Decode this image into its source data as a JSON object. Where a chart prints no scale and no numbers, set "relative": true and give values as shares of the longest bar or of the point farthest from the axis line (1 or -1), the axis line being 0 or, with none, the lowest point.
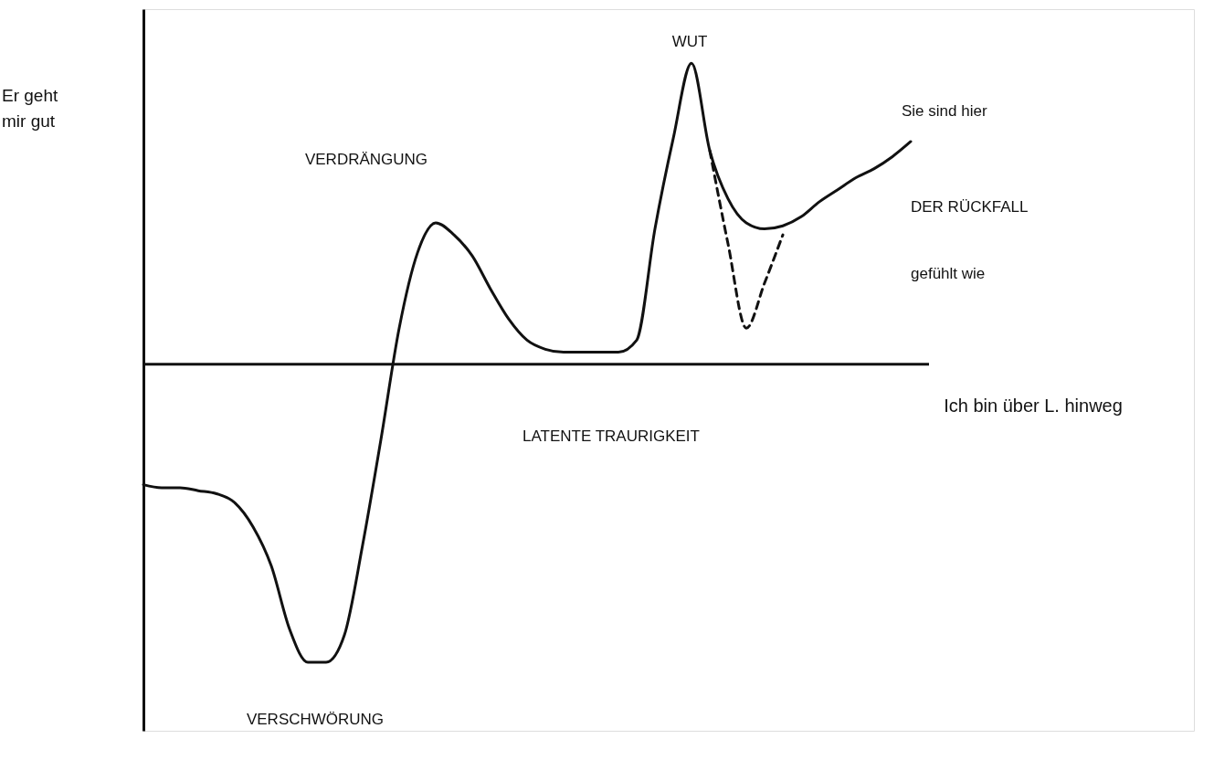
{
  "chart_data": {
    "type": "line",
    "relative": true,
    "xlabel": "Ich bin über L. hinweg",
    "ylabel": "Er geht mir gut",
    "categories": [
      null,
      null,
      null,
      null,
      null,
      null,
      null,
      null,
      null,
      null,
      null,
      null,
      null,
      null,
      null,
      null,
      null,
      null,
      null,
      null,
      null,
      null,
      null,
      null,
      null,
      null,
      null,
      null,
      null,
      null,
      null,
      null,
      null,
      null,
      null,
      null,
      null,
      null,
      null,
      null,
      null,
      null,
      null
    ],
    "series": [
      {
        "color": "#111111",
        "line_style": "solid",
        "values": [
          -0.4,
          -0.41,
          -0.41,
          -0.42,
          -0.43,
          -0.46,
          -0.54,
          -0.67,
          -0.88,
          -0.99,
          -0.99,
          -0.9,
          -0.6,
          -0.25,
          0.12,
          0.37,
          0.47,
          0.43,
          0.36,
          0.25,
          0.15,
          0.08,
          0.05,
          0.04,
          0.04,
          0.04,
          0.04,
          0.08,
          0.45,
          0.75,
          1,
          0.71,
          0.55,
          0.47,
          0.45,
          0.46,
          0.49,
          0.54,
          0.58,
          0.62,
          0.65,
          0.69,
          0.74
        ]
      },
      {
        "color": "#111111",
        "line_style": "dashed",
        "values": [
          null,
          null,
          null,
          null,
          null,
          null,
          null,
          null,
          null,
          null,
          null,
          null,
          null,
          null,
          null,
          null,
          null,
          null,
          null,
          null,
          null,
          null,
          null,
          null,
          null,
          null,
          null,
          null,
          null,
          null,
          null,
          0.71,
          0.4,
          0.12,
          0.27,
          0.43,
          null,
          null,
          null,
          null,
          null,
          null,
          null
        ]
      }
    ],
    "annotations": [
      "WUT",
      "VERDRÄNGUNG",
      "LATENTE TRAURIGKEIT",
      "VERSCHWÖRUNG",
      "DER RÜCKFALL",
      "gefühlt wie",
      "Sie sind hier"
    ]
  }
}
